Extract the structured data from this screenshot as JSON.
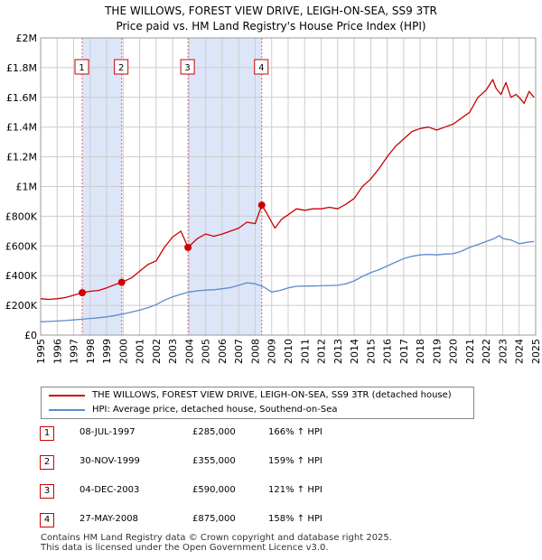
{
  "title": {
    "line1": "THE WILLOWS, FOREST VIEW DRIVE, LEIGH-ON-SEA, SS9 3TR",
    "line2": "Price paid vs. HM Land Registry's House Price Index (HPI)"
  },
  "legend": {
    "property_label": "THE WILLOWS, FOREST VIEW DRIVE, LEIGH-ON-SEA, SS9 3TR (detached house)",
    "hpi_label": "HPI: Average price, detached house, Southend-on-Sea"
  },
  "colors": {
    "property": "#cc0000",
    "hpi": "#5b8ccc",
    "shade": "#dde6f8",
    "grid": "#cccccc",
    "marker_line": "#e06666"
  },
  "sales": [
    {
      "num": "1",
      "date": "08-JUL-1997",
      "price": "£285,000",
      "hpi": "166% ↑ HPI"
    },
    {
      "num": "2",
      "date": "30-NOV-1999",
      "price": "£355,000",
      "hpi": "159% ↑ HPI"
    },
    {
      "num": "3",
      "date": "04-DEC-2003",
      "price": "£590,000",
      "hpi": "121% ↑ HPI"
    },
    {
      "num": "4",
      "date": "27-MAY-2008",
      "price": "£875,000",
      "hpi": "158% ↑ HPI"
    }
  ],
  "footer": {
    "line1": "Contains HM Land Registry data © Crown copyright and database right 2025.",
    "line2": "This data is licensed under the Open Government Licence v3.0."
  },
  "chart_data": {
    "type": "line",
    "title": "THE WILLOWS, FOREST VIEW DRIVE, LEIGH-ON-SEA, SS9 3TR — Price paid vs. HM Land Registry's House Price Index (HPI)",
    "xlabel": "",
    "ylabel": "",
    "xlim": [
      1995,
      2025
    ],
    "ylim": [
      0,
      2000000
    ],
    "x_ticks": [
      1995,
      1996,
      1997,
      1998,
      1999,
      2000,
      2001,
      2002,
      2003,
      2004,
      2005,
      2006,
      2007,
      2008,
      2009,
      2010,
      2011,
      2012,
      2013,
      2014,
      2015,
      2016,
      2017,
      2018,
      2019,
      2020,
      2021,
      2022,
      2023,
      2024,
      2025
    ],
    "x_tick_labels": [
      "1995",
      "1996",
      "1997",
      "1998",
      "1999",
      "2000",
      "2001",
      "2002",
      "2003",
      "2004",
      "2005",
      "2006",
      "2007",
      "2008",
      "2009",
      "2010",
      "2011",
      "2012",
      "2013",
      "2014",
      "2015",
      "2016",
      "2017",
      "2018",
      "2019",
      "2020",
      "2021",
      "2022",
      "2023",
      "2024",
      "2025"
    ],
    "y_ticks": [
      0,
      200000,
      400000,
      600000,
      800000,
      1000000,
      1200000,
      1400000,
      1600000,
      1800000,
      2000000
    ],
    "y_tick_labels": [
      "£0",
      "£200K",
      "£400K",
      "£600K",
      "£800K",
      "£1M",
      "£1.2M",
      "£1.4M",
      "£1.6M",
      "£1.8M",
      "£2M"
    ],
    "shaded_ranges": [
      [
        1997.52,
        1999.91
      ],
      [
        2003.93,
        2008.4
      ]
    ],
    "sale_markers": [
      {
        "label": "1",
        "x": 1997.52,
        "y": 285000
      },
      {
        "label": "2",
        "x": 1999.91,
        "y": 355000
      },
      {
        "label": "3",
        "x": 2003.93,
        "y": 590000
      },
      {
        "label": "4",
        "x": 2008.4,
        "y": 875000
      }
    ],
    "series": [
      {
        "name": "THE WILLOWS, FOREST VIEW DRIVE, LEIGH-ON-SEA, SS9 3TR (detached house)",
        "x": [
          1995.0,
          1995.5,
          1996.0,
          1996.5,
          1997.0,
          1997.52,
          1998.0,
          1998.5,
          1999.0,
          1999.5,
          1999.91,
          2000.5,
          2001.0,
          2001.5,
          2002.0,
          2002.5,
          2003.0,
          2003.5,
          2003.93,
          2004.5,
          2005.0,
          2005.5,
          2006.0,
          2006.5,
          2007.0,
          2007.5,
          2008.0,
          2008.4,
          2008.7,
          2009.0,
          2009.2,
          2009.6,
          2010.0,
          2010.5,
          2011.0,
          2011.5,
          2012.0,
          2012.5,
          2013.0,
          2013.5,
          2014.0,
          2014.5,
          2015.0,
          2015.5,
          2016.0,
          2016.5,
          2017.0,
          2017.5,
          2018.0,
          2018.5,
          2019.0,
          2019.5,
          2020.0,
          2020.5,
          2021.0,
          2021.5,
          2022.0,
          2022.4,
          2022.6,
          2022.9,
          2023.2,
          2023.5,
          2023.8,
          2024.0,
          2024.3,
          2024.6,
          2024.9
        ],
        "y": [
          245000,
          240000,
          245000,
          252000,
          268000,
          285000,
          295000,
          300000,
          318000,
          340000,
          355000,
          385000,
          430000,
          475000,
          500000,
          590000,
          660000,
          700000,
          590000,
          650000,
          680000,
          665000,
          680000,
          700000,
          720000,
          760000,
          750000,
          875000,
          820000,
          760000,
          720000,
          780000,
          810000,
          850000,
          840000,
          850000,
          850000,
          860000,
          850000,
          880000,
          920000,
          1000000,
          1050000,
          1120000,
          1200000,
          1270000,
          1320000,
          1370000,
          1390000,
          1400000,
          1380000,
          1400000,
          1420000,
          1460000,
          1500000,
          1600000,
          1650000,
          1720000,
          1660000,
          1620000,
          1700000,
          1600000,
          1620000,
          1600000,
          1560000,
          1640000,
          1600000
        ]
      },
      {
        "name": "HPI: Average price, detached house, Southend-on-Sea",
        "x": [
          1995.0,
          1995.5,
          1996.0,
          1996.5,
          1997.0,
          1997.5,
          1998.0,
          1998.5,
          1999.0,
          1999.5,
          2000.0,
          2000.5,
          2001.0,
          2001.5,
          2002.0,
          2002.5,
          2003.0,
          2003.5,
          2004.0,
          2004.5,
          2005.0,
          2005.5,
          2006.0,
          2006.5,
          2007.0,
          2007.5,
          2008.0,
          2008.5,
          2009.0,
          2009.5,
          2010.0,
          2010.5,
          2011.0,
          2011.5,
          2012.0,
          2012.5,
          2013.0,
          2013.5,
          2014.0,
          2014.5,
          2015.0,
          2015.5,
          2016.0,
          2016.5,
          2017.0,
          2017.5,
          2018.0,
          2018.5,
          2019.0,
          2019.5,
          2020.0,
          2020.5,
          2021.0,
          2021.5,
          2022.0,
          2022.5,
          2022.8,
          2023.0,
          2023.5,
          2024.0,
          2024.5,
          2024.9
        ],
        "y": [
          90000,
          92000,
          95000,
          98000,
          102000,
          107000,
          112000,
          117000,
          123000,
          132000,
          142000,
          155000,
          168000,
          185000,
          205000,
          235000,
          258000,
          275000,
          290000,
          298000,
          303000,
          305000,
          312000,
          320000,
          335000,
          352000,
          345000,
          325000,
          290000,
          300000,
          318000,
          328000,
          330000,
          330000,
          332000,
          334000,
          335000,
          345000,
          365000,
          395000,
          420000,
          440000,
          465000,
          490000,
          515000,
          530000,
          540000,
          543000,
          540000,
          545000,
          548000,
          565000,
          590000,
          610000,
          630000,
          650000,
          670000,
          650000,
          640000,
          615000,
          625000,
          630000
        ]
      }
    ]
  }
}
